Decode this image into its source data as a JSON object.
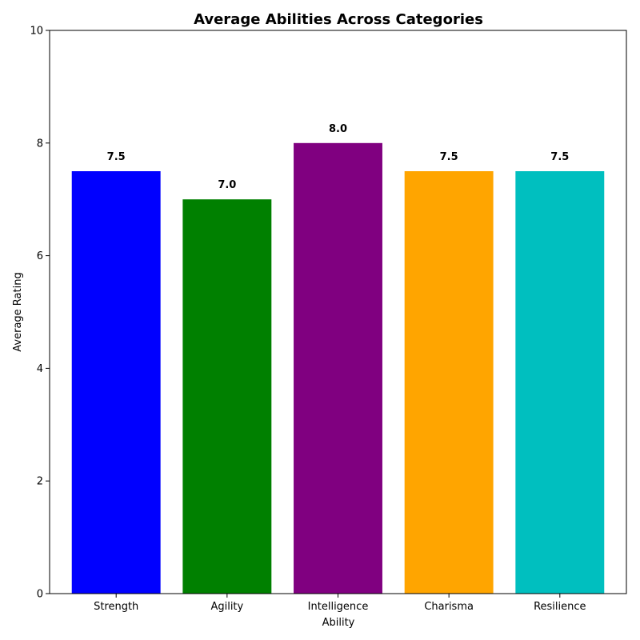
{
  "chart_data": {
    "type": "bar",
    "title": "Average Abilities Across Categories",
    "xlabel": "Ability",
    "ylabel": "Average Rating",
    "categories": [
      "Strength",
      "Agility",
      "Intelligence",
      "Charisma",
      "Resilience"
    ],
    "values": [
      7.5,
      7.0,
      8.0,
      7.5,
      7.5
    ],
    "value_labels": [
      "7.5",
      "7.0",
      "8.0",
      "7.5",
      "7.5"
    ],
    "colors": [
      "#0000ff",
      "#008000",
      "#800080",
      "#ffa500",
      "#00bfbf"
    ],
    "ylim": [
      0,
      10
    ],
    "yticks": [
      0,
      2,
      4,
      6,
      8,
      10
    ],
    "grid": false,
    "legend": "none"
  }
}
